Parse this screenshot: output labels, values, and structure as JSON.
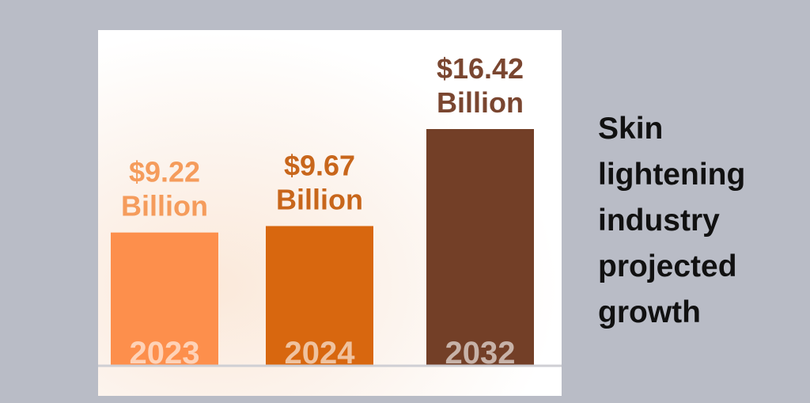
{
  "caption": "Skin lightening industry projected growth",
  "chart_data": {
    "type": "bar",
    "title": "",
    "xlabel": "",
    "ylabel": "",
    "categories": [
      "2023",
      "2024",
      "2032"
    ],
    "values": [
      9.22,
      9.67,
      16.42
    ],
    "data_labels": [
      [
        "$9.22",
        "Billion"
      ],
      [
        "$9.67",
        "Billion"
      ],
      [
        "$16.42",
        "Billion"
      ]
    ],
    "unit": "Billion USD",
    "colors": [
      "#fd8f4c",
      "#d8670f",
      "#733f27"
    ],
    "label_colors": [
      "#f59c5c",
      "#c8661b",
      "#7a4630"
    ],
    "ylim": [
      0,
      16.42
    ],
    "grid": false,
    "legend": "none"
  }
}
